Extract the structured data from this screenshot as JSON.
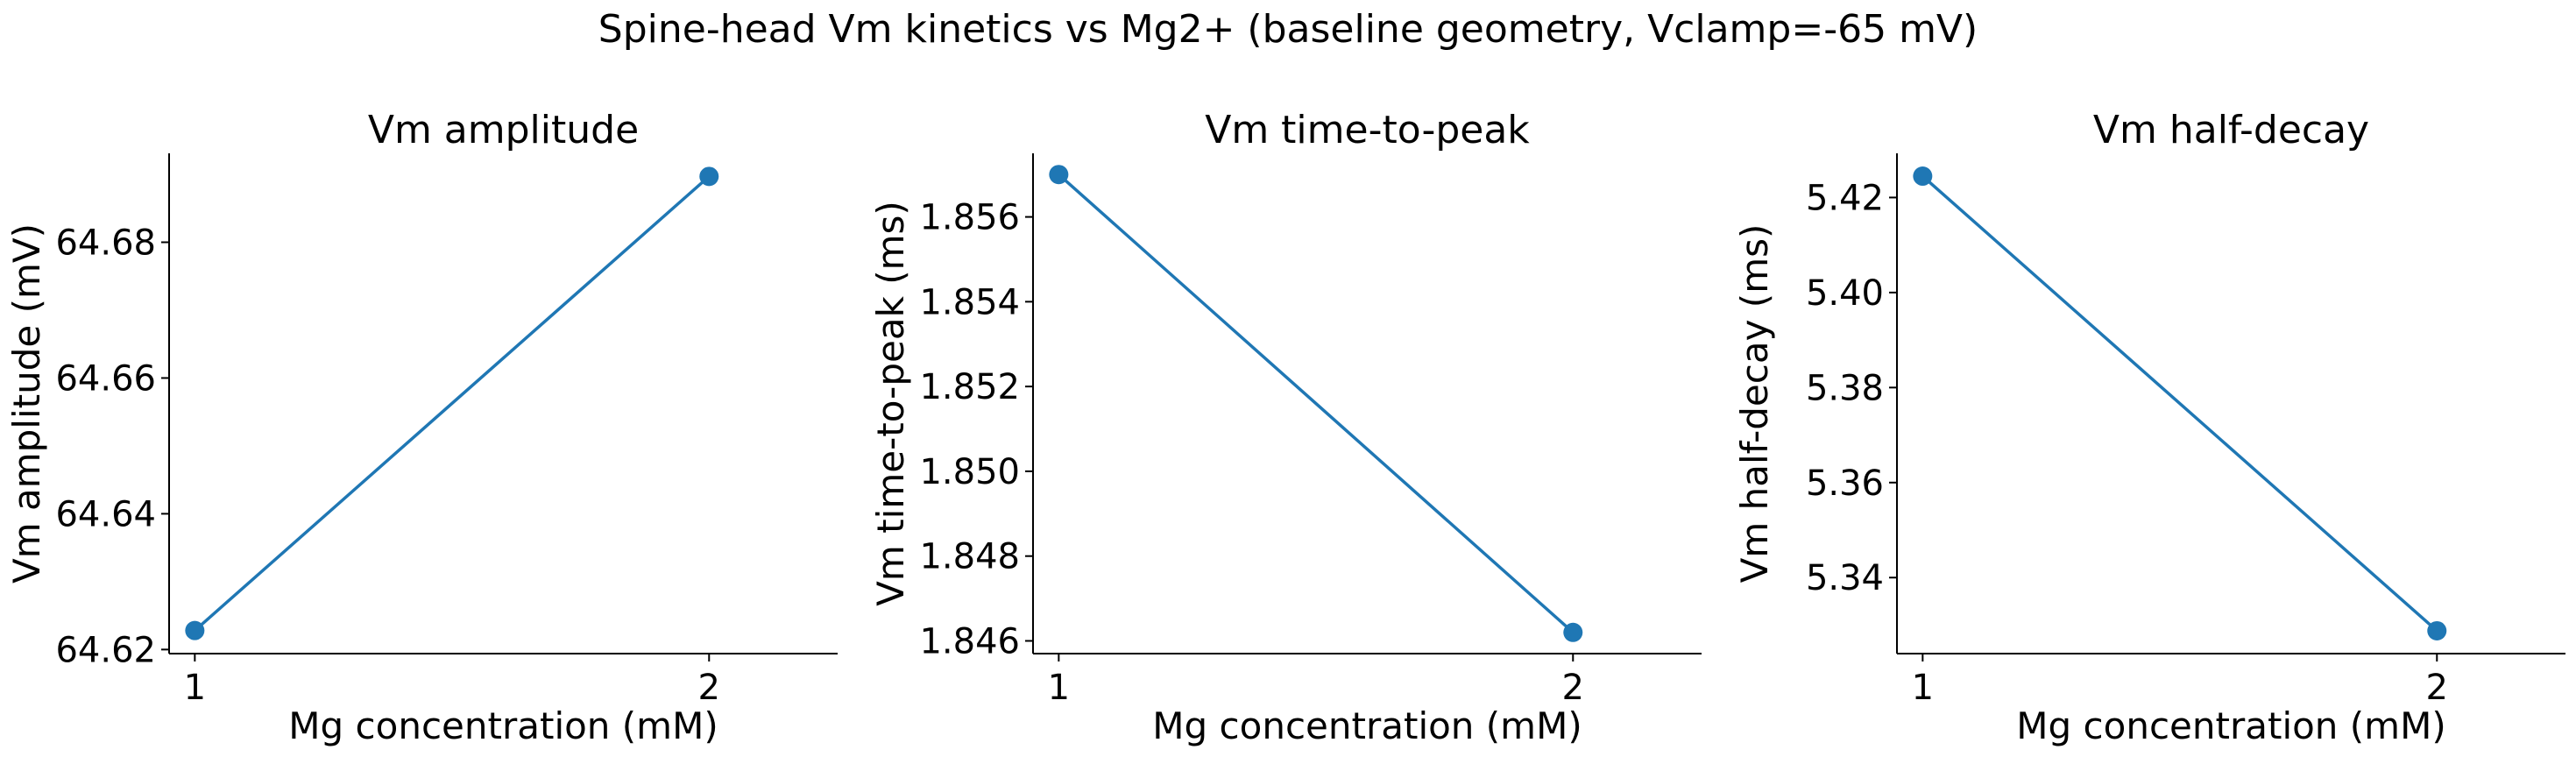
{
  "figure": {
    "title": "Spine-head Vm kinetics vs Mg2+ (baseline geometry, Vclamp=-65 mV)"
  },
  "colors": {
    "series": "#1f77b4"
  },
  "chart_data": [
    {
      "type": "line",
      "title": "Vm amplitude",
      "xlabel": "Mg concentration (mM)",
      "ylabel": "Vm amplitude (mV)",
      "x": [
        1,
        2
      ],
      "y": [
        64.6228,
        64.6897
      ],
      "xticks": [
        "1",
        "2"
      ],
      "xlim": [
        0.95,
        2.25
      ],
      "yticks": [
        "64.62",
        "64.64",
        "64.66",
        "64.68"
      ],
      "ytick_values": [
        64.62,
        64.64,
        64.66,
        64.68
      ],
      "ylim": [
        64.6194,
        64.6931
      ],
      "grid": false,
      "markers": true
    },
    {
      "type": "line",
      "title": "Vm time-to-peak",
      "xlabel": "Mg concentration (mM)",
      "ylabel": "Vm time-to-peak (ms)",
      "x": [
        1,
        2
      ],
      "y": [
        1.857,
        1.8462
      ],
      "xticks": [
        "1",
        "2"
      ],
      "xlim": [
        0.95,
        2.25
      ],
      "yticks": [
        "1.846",
        "1.848",
        "1.850",
        "1.852",
        "1.854",
        "1.856"
      ],
      "ytick_values": [
        1.846,
        1.848,
        1.85,
        1.852,
        1.854,
        1.856
      ],
      "ylim": [
        1.8457,
        1.8575
      ],
      "grid": false,
      "markers": true
    },
    {
      "type": "line",
      "title": "Vm half-decay",
      "xlabel": "Mg concentration (mM)",
      "ylabel": "Vm half-decay (ms)",
      "x": [
        1,
        2
      ],
      "y": [
        5.4245,
        5.3288
      ],
      "xticks": [
        "1",
        "2"
      ],
      "xlim": [
        0.95,
        2.25
      ],
      "yticks": [
        "5.34",
        "5.36",
        "5.38",
        "5.40",
        "5.42"
      ],
      "ytick_values": [
        5.34,
        5.36,
        5.38,
        5.4,
        5.42
      ],
      "ylim": [
        5.324,
        5.4293
      ],
      "grid": false,
      "markers": true
    }
  ]
}
